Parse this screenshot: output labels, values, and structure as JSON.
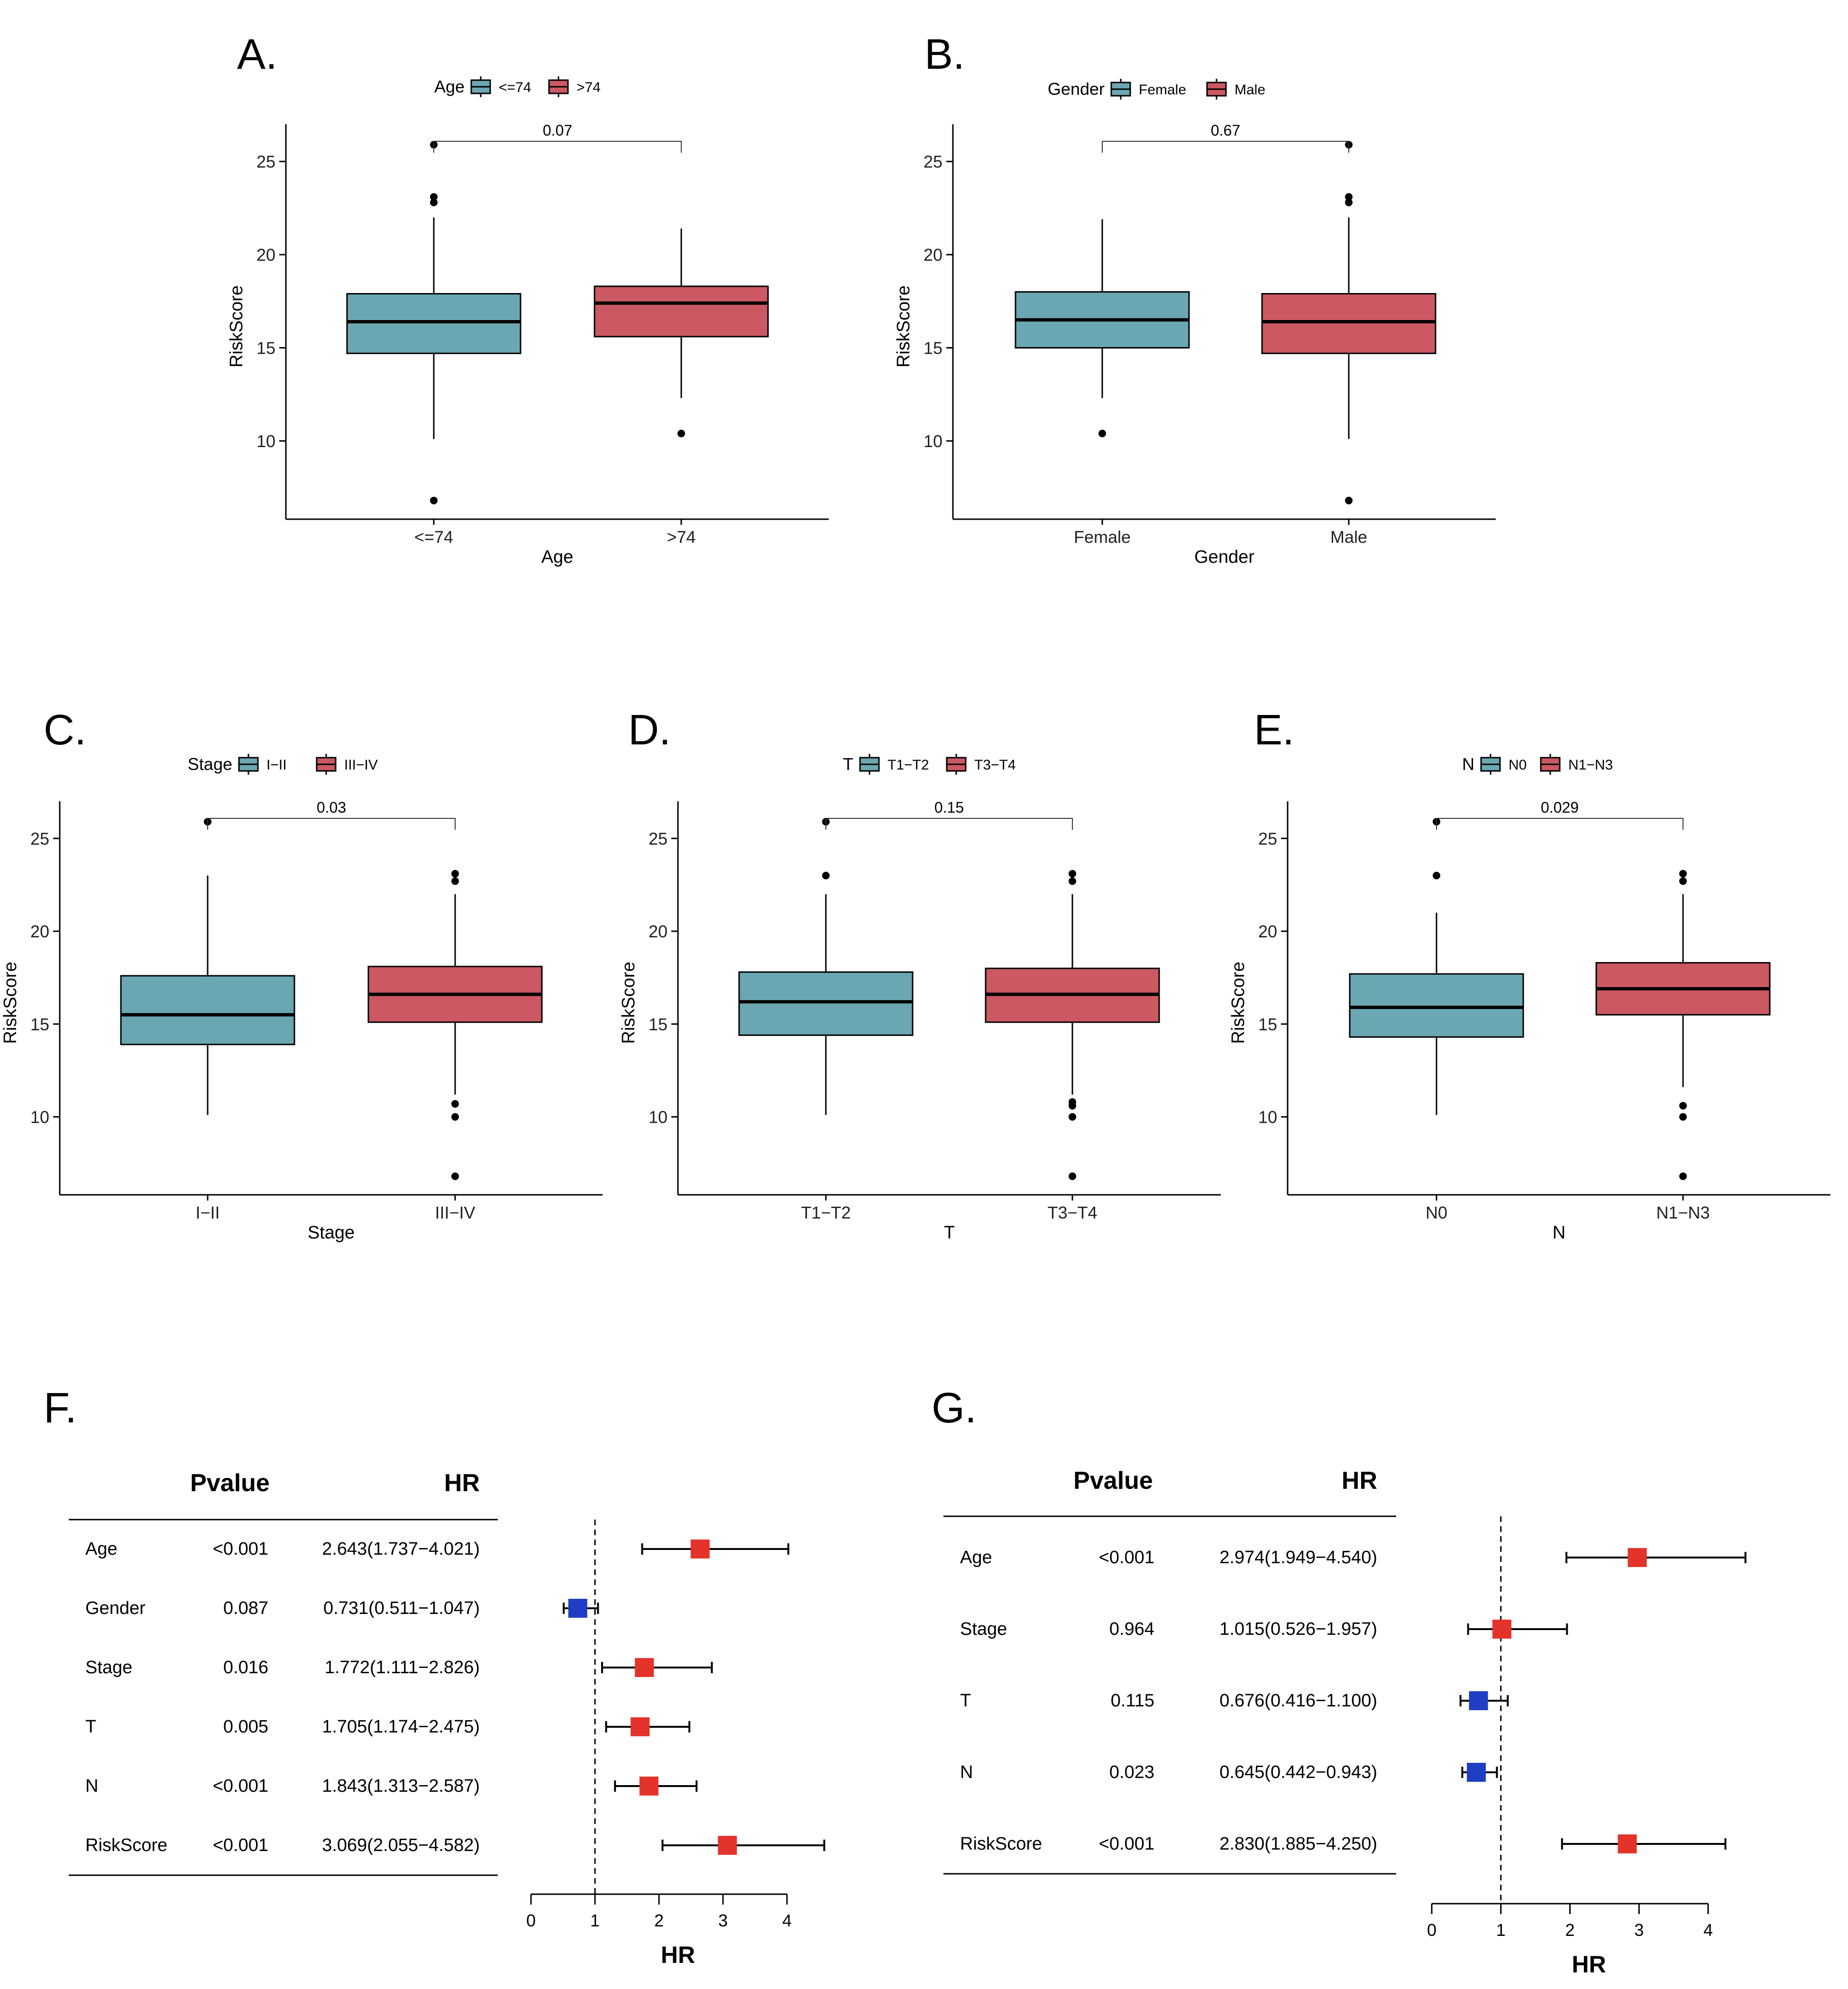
{
  "colors": {
    "teal": "#6ba7b2",
    "red": "#cb5862",
    "forest_red": "#e4332a",
    "forest_blue": "#1f3ec3"
  },
  "chart_data": [
    {
      "id": "A",
      "type": "boxplot",
      "label": "A.",
      "legend_title": "Age",
      "xlabel": "Age",
      "ylabel": "RiskScore",
      "categories": [
        "<=74",
        ">74"
      ],
      "y_ticks": [
        "10",
        "15",
        "20",
        "25"
      ],
      "ylim": [
        5.8,
        27.0
      ],
      "pvalue": "0.07",
      "boxes": [
        {
          "name": "<=74",
          "q1": 14.7,
          "median": 16.4,
          "q3": 17.9,
          "whisker_low": 10.1,
          "whisker_high": 22.0,
          "outliers": [
            25.9,
            23.1,
            22.8,
            6.8
          ]
        },
        {
          "name": ">74",
          "q1": 15.6,
          "median": 17.4,
          "q3": 18.3,
          "whisker_low": 12.3,
          "whisker_high": 21.4,
          "outliers": [
            10.4
          ]
        }
      ]
    },
    {
      "id": "B",
      "type": "boxplot",
      "label": "B.",
      "legend_title": "Gender",
      "xlabel": "Gender",
      "ylabel": "RiskScore",
      "categories": [
        "Female",
        "Male"
      ],
      "y_ticks": [
        "10",
        "15",
        "20",
        "25"
      ],
      "ylim": [
        5.8,
        27.0
      ],
      "pvalue": "0.67",
      "boxes": [
        {
          "name": "Female",
          "q1": 15.0,
          "median": 16.5,
          "q3": 18.0,
          "whisker_low": 12.3,
          "whisker_high": 21.9,
          "outliers": [
            10.4
          ]
        },
        {
          "name": "Male",
          "q1": 14.7,
          "median": 16.4,
          "q3": 17.9,
          "whisker_low": 10.1,
          "whisker_high": 22.0,
          "outliers": [
            25.9,
            23.1,
            22.8,
            6.8
          ]
        }
      ]
    },
    {
      "id": "C",
      "type": "boxplot",
      "label": "C.",
      "legend_title": "Stage",
      "xlabel": "Stage",
      "ylabel": "RiskScore",
      "categories": [
        "I−II",
        "III−IV"
      ],
      "y_ticks": [
        "10",
        "15",
        "20",
        "25"
      ],
      "ylim": [
        5.8,
        27.0
      ],
      "pvalue": "0.03",
      "boxes": [
        {
          "name": "I−II",
          "q1": 13.9,
          "median": 15.5,
          "q3": 17.6,
          "whisker_low": 10.1,
          "whisker_high": 23.0,
          "outliers": [
            25.9
          ]
        },
        {
          "name": "III−IV",
          "q1": 15.1,
          "median": 16.6,
          "q3": 18.1,
          "whisker_low": 11.2,
          "whisker_high": 22.0,
          "outliers": [
            23.1,
            22.7,
            10.7,
            10.0,
            6.8
          ]
        }
      ]
    },
    {
      "id": "D",
      "type": "boxplot",
      "label": "D.",
      "legend_title": "T",
      "xlabel": "T",
      "ylabel": "RiskScore",
      "categories": [
        "T1−T2",
        "T3−T4"
      ],
      "y_ticks": [
        "10",
        "15",
        "20",
        "25"
      ],
      "ylim": [
        5.8,
        27.0
      ],
      "pvalue": "0.15",
      "boxes": [
        {
          "name": "T1−T2",
          "q1": 14.4,
          "median": 16.2,
          "q3": 17.8,
          "whisker_low": 10.1,
          "whisker_high": 22.0,
          "outliers": [
            25.9,
            23.0
          ]
        },
        {
          "name": "T3−T4",
          "q1": 15.1,
          "median": 16.6,
          "q3": 18.0,
          "whisker_low": 11.2,
          "whisker_high": 22.0,
          "outliers": [
            23.1,
            22.7,
            10.8,
            10.6,
            10.0,
            6.8
          ]
        }
      ]
    },
    {
      "id": "E",
      "type": "boxplot",
      "label": "E.",
      "legend_title": "N",
      "xlabel": "N",
      "ylabel": "RiskScore",
      "categories": [
        "N0",
        "N1−N3"
      ],
      "y_ticks": [
        "10",
        "15",
        "20",
        "25"
      ],
      "ylim": [
        5.8,
        27.0
      ],
      "pvalue": "0.029",
      "boxes": [
        {
          "name": "N0",
          "q1": 14.3,
          "median": 15.9,
          "q3": 17.7,
          "whisker_low": 10.1,
          "whisker_high": 21.0,
          "outliers": [
            25.9,
            23.0
          ]
        },
        {
          "name": "N1−N3",
          "q1": 15.5,
          "median": 16.9,
          "q3": 18.3,
          "whisker_low": 11.6,
          "whisker_high": 22.0,
          "outliers": [
            23.1,
            22.7,
            10.6,
            10.0,
            6.8
          ]
        }
      ]
    },
    {
      "id": "F",
      "type": "forest",
      "label": "F.",
      "col_pvalue": "Pvalue",
      "col_hr": "HR",
      "xlabel": "HR",
      "x_ticks": [
        "0",
        "1",
        "2",
        "3",
        "4"
      ],
      "xlim": [
        0,
        4
      ],
      "ref": 1,
      "rows": [
        {
          "name": "Age",
          "pvalue": "<0.001",
          "hr_text": "2.643(1.737−4.021)",
          "hr": 2.643,
          "lo": 1.737,
          "hi": 4.021
        },
        {
          "name": "Gender",
          "pvalue": "0.087",
          "hr_text": "0.731(0.511−1.047)",
          "hr": 0.731,
          "lo": 0.511,
          "hi": 1.047
        },
        {
          "name": "Stage",
          "pvalue": "0.016",
          "hr_text": "1.772(1.111−2.826)",
          "hr": 1.772,
          "lo": 1.111,
          "hi": 2.826
        },
        {
          "name": "T",
          "pvalue": "0.005",
          "hr_text": "1.705(1.174−2.475)",
          "hr": 1.705,
          "lo": 1.174,
          "hi": 2.475
        },
        {
          "name": "N",
          "pvalue": "<0.001",
          "hr_text": "1.843(1.313−2.587)",
          "hr": 1.843,
          "lo": 1.313,
          "hi": 2.587
        },
        {
          "name": "RiskScore",
          "pvalue": "<0.001",
          "hr_text": "3.069(2.055−4.582)",
          "hr": 3.069,
          "lo": 2.055,
          "hi": 4.582
        }
      ]
    },
    {
      "id": "G",
      "type": "forest",
      "label": "G.",
      "col_pvalue": "Pvalue",
      "col_hr": "HR",
      "xlabel": "HR",
      "x_ticks": [
        "0",
        "1",
        "2",
        "3",
        "4"
      ],
      "xlim": [
        0,
        4
      ],
      "ref": 1,
      "rows": [
        {
          "name": "Age",
          "pvalue": "<0.001",
          "hr_text": "2.974(1.949−4.540)",
          "hr": 2.974,
          "lo": 1.949,
          "hi": 4.54
        },
        {
          "name": "Stage",
          "pvalue": "0.964",
          "hr_text": "1.015(0.526−1.957)",
          "hr": 1.015,
          "lo": 0.526,
          "hi": 1.957
        },
        {
          "name": "T",
          "pvalue": "0.115",
          "hr_text": "0.676(0.416−1.100)",
          "hr": 0.676,
          "lo": 0.416,
          "hi": 1.1
        },
        {
          "name": "N",
          "pvalue": "0.023",
          "hr_text": "0.645(0.442−0.943)",
          "hr": 0.645,
          "lo": 0.442,
          "hi": 0.943
        },
        {
          "name": "RiskScore",
          "pvalue": "<0.001",
          "hr_text": "2.830(1.885−4.250)",
          "hr": 2.83,
          "lo": 1.885,
          "hi": 4.25
        }
      ]
    }
  ]
}
